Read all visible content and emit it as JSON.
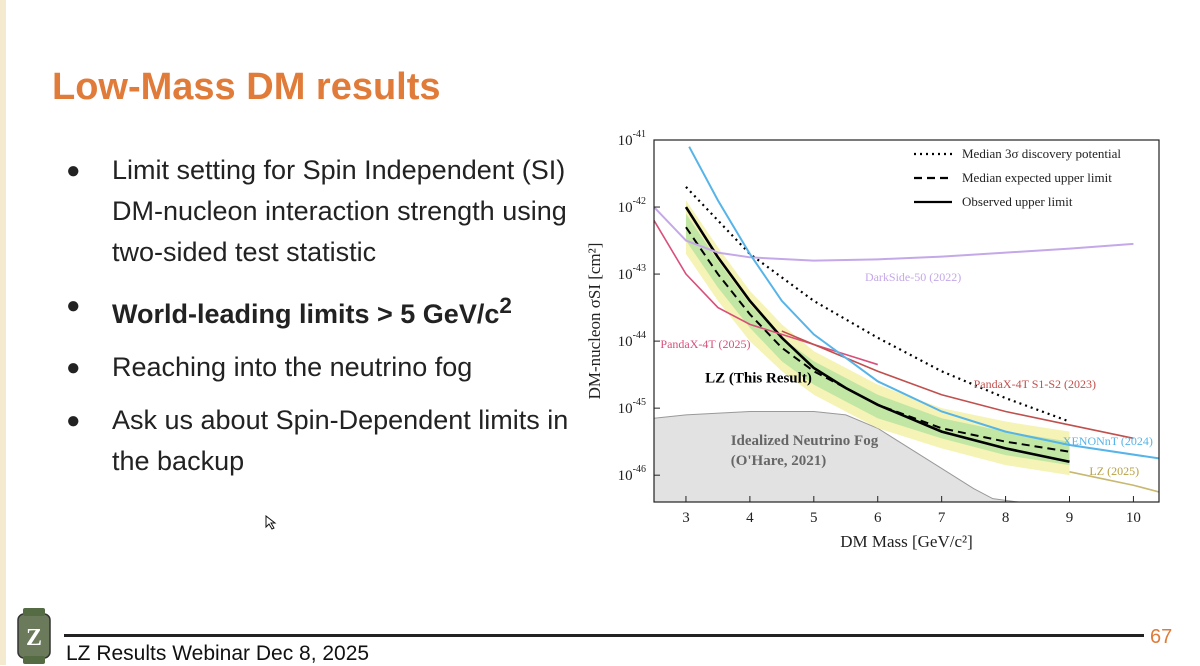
{
  "slide": {
    "title": "Low-Mass DM results",
    "bullets": [
      {
        "text": "Limit setting for Spin Independent (SI) DM-nucleon interaction strength using two-sided test statistic",
        "bold": false
      },
      {
        "text": "World-leading limits > 5 GeV/c",
        "sup": "2",
        "bold": true
      },
      {
        "text": "Reaching into the neutrino fog",
        "bold": false
      },
      {
        "text": "Ask us about Spin-Dependent limits in the backup",
        "bold": false
      }
    ],
    "footer": "LZ Results Webinar Dec 8, 2025",
    "page_number": "67",
    "logo_letter": "Z"
  },
  "colors": {
    "title": "#e07b39",
    "band_1sigma": "#b8e3a0",
    "band_2sigma": "#f3f1a8",
    "fog": "#e2e2e2",
    "darkside": "#c4a8e8",
    "pandax4t": "#d94f7a",
    "pandax_s1s2": "#c0504d",
    "xenonnt": "#56b4e9",
    "lz2025": "#c8b870",
    "lz_result": "#000000"
  },
  "chart_data": {
    "type": "line",
    "xlabel": "DM Mass [GeV/c²]",
    "ylabel": "DM-nucleon σSI [cm²]",
    "xlim": [
      2.5,
      10.4
    ],
    "ylim": [
      -46.4,
      -41
    ],
    "yscale": "log",
    "xticks": [
      3,
      4,
      5,
      6,
      7,
      8,
      9,
      10
    ],
    "yticks": [
      -46,
      -45,
      -44,
      -43,
      -42,
      -41
    ],
    "legend": {
      "position": "top-right",
      "entries": [
        {
          "label": "Median 3σ discovery potential",
          "style": "dotted"
        },
        {
          "label": "Median expected upper limit",
          "style": "dashed"
        },
        {
          "label": "Observed upper limit",
          "style": "solid"
        }
      ]
    },
    "annotations": [
      {
        "text": "DarkSide-50 (2022)",
        "series": "darkside"
      },
      {
        "text": "PandaX-4T (2025)",
        "series": "pandax4t"
      },
      {
        "text": "PandaX-4T S1-S2 (2023)",
        "series": "pandax_s1s2"
      },
      {
        "text": "XENONnT (2024)",
        "series": "xenonnt"
      },
      {
        "text": "LZ (2025)",
        "series": "lz2025"
      },
      {
        "text": "LZ (This Result)",
        "series": "observed"
      },
      {
        "text": "Idealized Neutrino Fog",
        "series": "fog"
      },
      {
        "text": "(O'Hare, 2021)",
        "series": "fog"
      }
    ],
    "bands": {
      "x": [
        3.0,
        3.5,
        4.0,
        4.5,
        5.0,
        5.5,
        6.0,
        7.0,
        8.0,
        9.0
      ],
      "sigma2_low": [
        -42.7,
        -43.4,
        -44.0,
        -44.45,
        -44.8,
        -45.05,
        -45.3,
        -45.6,
        -45.85,
        -46.0
      ],
      "sigma2_high": [
        -41.9,
        -42.6,
        -43.25,
        -43.75,
        -44.15,
        -44.4,
        -44.65,
        -45.0,
        -45.2,
        -45.35
      ],
      "sigma1_low": [
        -42.5,
        -43.2,
        -43.8,
        -44.3,
        -44.65,
        -44.9,
        -45.15,
        -45.45,
        -45.7,
        -45.85
      ],
      "sigma1_high": [
        -42.1,
        -42.8,
        -43.45,
        -43.95,
        -44.3,
        -44.55,
        -44.8,
        -45.15,
        -45.35,
        -45.5
      ]
    },
    "fog": {
      "x": [
        2.5,
        3.0,
        4.0,
        5.0,
        5.5,
        6.0,
        7.0,
        7.5,
        7.8,
        8.2
      ],
      "y": [
        -45.15,
        -45.1,
        -45.05,
        -45.05,
        -45.1,
        -45.3,
        -45.9,
        -46.2,
        -46.35,
        -46.4
      ]
    },
    "series": [
      {
        "key": "observed",
        "name": "Observed upper limit",
        "style": "solid",
        "x": [
          3.0,
          3.5,
          4.0,
          4.5,
          5.0,
          5.5,
          6.0,
          7.0,
          8.0,
          9.0
        ],
        "y": [
          -42.0,
          -42.75,
          -43.4,
          -43.95,
          -44.4,
          -44.7,
          -44.95,
          -45.35,
          -45.6,
          -45.8
        ]
      },
      {
        "key": "expected",
        "name": "Median expected upper limit",
        "style": "dashed",
        "x": [
          3.0,
          3.5,
          4.0,
          4.5,
          5.0,
          5.5,
          6.0,
          7.0,
          8.0,
          9.0
        ],
        "y": [
          -42.3,
          -43.0,
          -43.6,
          -44.1,
          -44.45,
          -44.7,
          -44.95,
          -45.3,
          -45.5,
          -45.65
        ]
      },
      {
        "key": "discovery",
        "name": "Median 3σ discovery potential",
        "style": "dotted",
        "x": [
          3.0,
          3.5,
          4.0,
          5.0,
          6.0,
          7.0,
          8.0,
          9.0
        ],
        "y": [
          -41.7,
          -42.2,
          -42.7,
          -43.4,
          -43.95,
          -44.45,
          -44.85,
          -45.2
        ]
      },
      {
        "key": "darkside",
        "name": "DarkSide-50 (2022)",
        "x": [
          2.5,
          3.0,
          3.5,
          4.0,
          5.0,
          6.0,
          7.0,
          8.0,
          9.0,
          10.0
        ],
        "y": [
          -42.0,
          -42.5,
          -42.68,
          -42.75,
          -42.8,
          -42.78,
          -42.74,
          -42.68,
          -42.62,
          -42.55
        ]
      },
      {
        "key": "pandax4t",
        "name": "PandaX-4T (2025)",
        "x": [
          2.5,
          3.0,
          3.5,
          4.0,
          4.5,
          5.0,
          5.5,
          6.0
        ],
        "y": [
          -42.2,
          -43.0,
          -43.5,
          -43.75,
          -43.9,
          -44.05,
          -44.2,
          -44.35
        ]
      },
      {
        "key": "pandax_s1s2",
        "name": "PandaX-4T S1-S2 (2023)",
        "x": [
          4.5,
          5.0,
          6.0,
          7.0,
          8.0,
          9.0,
          10.0
        ],
        "y": [
          -43.85,
          -44.05,
          -44.45,
          -44.8,
          -45.05,
          -45.25,
          -45.45
        ]
      },
      {
        "key": "xenonnt",
        "name": "XENONnT (2024)",
        "x": [
          3.05,
          3.5,
          4.0,
          4.5,
          5.0,
          6.0,
          7.0,
          8.0,
          9.0,
          10.4
        ],
        "y": [
          -41.1,
          -41.9,
          -42.7,
          -43.4,
          -43.9,
          -44.6,
          -45.05,
          -45.35,
          -45.55,
          -45.75
        ]
      },
      {
        "key": "lz2025",
        "name": "LZ (2025)",
        "x": [
          9.0,
          9.5,
          10.0,
          10.4
        ],
        "y": [
          -45.95,
          -46.05,
          -46.15,
          -46.25
        ]
      }
    ]
  }
}
